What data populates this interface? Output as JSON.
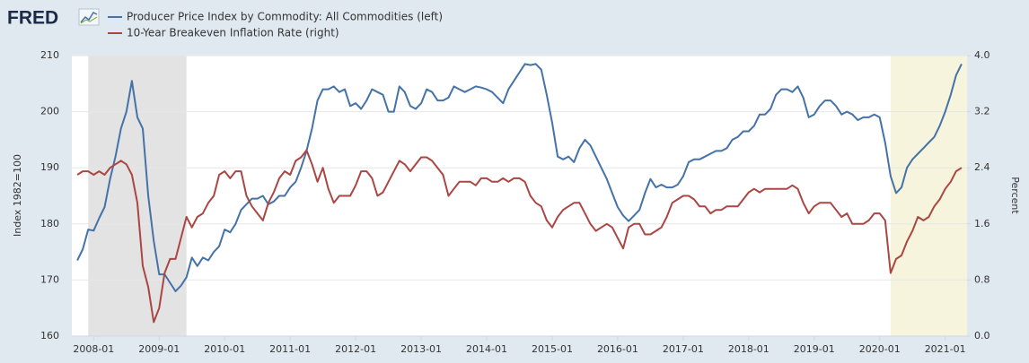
{
  "chart_data": {
    "type": "line",
    "logo": "FRED",
    "y_label": "Index 1982=100",
    "y2_label": "Percent",
    "xlim": [
      "2007-09",
      "2021-05"
    ],
    "xticks": [
      "2008-01",
      "2009-01",
      "2010-01",
      "2011-01",
      "2012-01",
      "2013-01",
      "2014-01",
      "2015-01",
      "2016-01",
      "2017-01",
      "2018-01",
      "2019-01",
      "2020-01",
      "2021-01"
    ],
    "ylim": [
      160,
      210
    ],
    "yticks": [
      160,
      170,
      180,
      190,
      200,
      210
    ],
    "y2lim": [
      0,
      4
    ],
    "y2ticks": [
      {
        "value": 0,
        "label": "0.0"
      },
      0.8,
      1.6,
      2.4,
      3.2,
      {
        "value": 4,
        "label": "4.0"
      }
    ],
    "grid": true,
    "shading": [
      {
        "start": "2007-12",
        "end": "2009-06",
        "color": "#e3e3e3"
      },
      {
        "start": "2020-03",
        "end": "2021-05",
        "color": "#f6f4dc"
      }
    ],
    "x": [
      "2007-10",
      "2007-11",
      "2007-12",
      "2008-01",
      "2008-02",
      "2008-03",
      "2008-04",
      "2008-05",
      "2008-06",
      "2008-07",
      "2008-08",
      "2008-09",
      "2008-10",
      "2008-11",
      "2008-12",
      "2009-01",
      "2009-02",
      "2009-03",
      "2009-04",
      "2009-05",
      "2009-06",
      "2009-07",
      "2009-08",
      "2009-09",
      "2009-10",
      "2009-11",
      "2009-12",
      "2010-01",
      "2010-02",
      "2010-03",
      "2010-04",
      "2010-05",
      "2010-06",
      "2010-07",
      "2010-08",
      "2010-09",
      "2010-10",
      "2010-11",
      "2010-12",
      "2011-01",
      "2011-02",
      "2011-03",
      "2011-04",
      "2011-05",
      "2011-06",
      "2011-07",
      "2011-08",
      "2011-09",
      "2011-10",
      "2011-11",
      "2011-12",
      "2012-01",
      "2012-02",
      "2012-03",
      "2012-04",
      "2012-05",
      "2012-06",
      "2012-07",
      "2012-08",
      "2012-09",
      "2012-10",
      "2012-11",
      "2012-12",
      "2013-01",
      "2013-02",
      "2013-03",
      "2013-04",
      "2013-05",
      "2013-06",
      "2013-07",
      "2013-08",
      "2013-09",
      "2013-10",
      "2013-11",
      "2013-12",
      "2014-01",
      "2014-02",
      "2014-03",
      "2014-04",
      "2014-05",
      "2014-06",
      "2014-07",
      "2014-08",
      "2014-09",
      "2014-10",
      "2014-11",
      "2014-12",
      "2015-01",
      "2015-02",
      "2015-03",
      "2015-04",
      "2015-05",
      "2015-06",
      "2015-07",
      "2015-08",
      "2015-09",
      "2015-10",
      "2015-11",
      "2015-12",
      "2016-01",
      "2016-02",
      "2016-03",
      "2016-04",
      "2016-05",
      "2016-06",
      "2016-07",
      "2016-08",
      "2016-09",
      "2016-10",
      "2016-11",
      "2016-12",
      "2017-01",
      "2017-02",
      "2017-03",
      "2017-04",
      "2017-05",
      "2017-06",
      "2017-07",
      "2017-08",
      "2017-09",
      "2017-10",
      "2017-11",
      "2017-12",
      "2018-01",
      "2018-02",
      "2018-03",
      "2018-04",
      "2018-05",
      "2018-06",
      "2018-07",
      "2018-08",
      "2018-09",
      "2018-10",
      "2018-11",
      "2018-12",
      "2019-01",
      "2019-02",
      "2019-03",
      "2019-04",
      "2019-05",
      "2019-06",
      "2019-07",
      "2019-08",
      "2019-09",
      "2019-10",
      "2019-11",
      "2019-12",
      "2020-01",
      "2020-02",
      "2020-03",
      "2020-04",
      "2020-05",
      "2020-06",
      "2020-07",
      "2020-08",
      "2020-09",
      "2020-10",
      "2020-11",
      "2020-12",
      "2021-01",
      "2021-02",
      "2021-03",
      "2021-04"
    ],
    "series": [
      {
        "name": "Producer Price Index by Commodity: All Commodities (left)",
        "color": "#4572a7",
        "axis": "y",
        "values": [
          173.5,
          175.5,
          179,
          178.8,
          181,
          183,
          188,
          192,
          197,
          200,
          205.5,
          199,
          197,
          185,
          177,
          171,
          171,
          169.5,
          168,
          169,
          170.5,
          174,
          172.5,
          174,
          173.5,
          175,
          176,
          179,
          178.5,
          180,
          182.5,
          183.5,
          184.5,
          184.5,
          185,
          183.5,
          184,
          185,
          185,
          186.5,
          187.5,
          190,
          193,
          197,
          202,
          204,
          204,
          204.5,
          203.5,
          204,
          201,
          201.5,
          200.5,
          202,
          204,
          203.5,
          203,
          200,
          200,
          204.5,
          203.5,
          201,
          200.5,
          201.5,
          204,
          203.5,
          202,
          202,
          202.5,
          204.5,
          204,
          203.5,
          204,
          204.5,
          204.3,
          204,
          203.5,
          202.5,
          201.5,
          204,
          205.5,
          207,
          208.5,
          208.3,
          208.5,
          207.5,
          203,
          198,
          192,
          191.5,
          192,
          191,
          193.5,
          195,
          194,
          192,
          190,
          188,
          185.5,
          183,
          181.5,
          180.5,
          181.5,
          182.5,
          185.5,
          188,
          186.5,
          187,
          186.5,
          186.5,
          187,
          188.5,
          191,
          191.5,
          191.5,
          192,
          192.5,
          193,
          193,
          193.5,
          195,
          195.5,
          196.5,
          196.5,
          197.5,
          199.5,
          199.5,
          200.5,
          203,
          204,
          204,
          203.5,
          204.5,
          202.5,
          199,
          199.5,
          201,
          202,
          202,
          201,
          199.5,
          200,
          199.5,
          198.5,
          199,
          199,
          199.5,
          199,
          194.5,
          188.5,
          185.5,
          186.5,
          190,
          191.5,
          192.5,
          193.5,
          194.5,
          195.5,
          197.5,
          200,
          203,
          206.5,
          208.5
        ]
      },
      {
        "name": "10-Year Breakeven Inflation Rate (right)",
        "color": "#aa4643",
        "axis": "y2",
        "values": [
          2.3,
          2.35,
          2.35,
          2.3,
          2.35,
          2.3,
          2.4,
          2.45,
          2.5,
          2.45,
          2.3,
          1.9,
          1.0,
          0.7,
          0.2,
          0.4,
          0.9,
          1.1,
          1.1,
          1.4,
          1.7,
          1.55,
          1.7,
          1.75,
          1.9,
          2.0,
          2.3,
          2.35,
          2.25,
          2.35,
          2.35,
          2.0,
          1.85,
          1.75,
          1.65,
          1.9,
          2.05,
          2.25,
          2.35,
          2.3,
          2.5,
          2.55,
          2.65,
          2.45,
          2.2,
          2.4,
          2.1,
          1.9,
          2.0,
          2.0,
          2.0,
          2.15,
          2.35,
          2.35,
          2.25,
          2.0,
          2.05,
          2.2,
          2.35,
          2.5,
          2.45,
          2.35,
          2.45,
          2.55,
          2.55,
          2.5,
          2.4,
          2.3,
          2.0,
          2.1,
          2.2,
          2.2,
          2.2,
          2.15,
          2.25,
          2.25,
          2.2,
          2.2,
          2.25,
          2.2,
          2.25,
          2.25,
          2.2,
          2.0,
          1.9,
          1.85,
          1.65,
          1.55,
          1.7,
          1.8,
          1.85,
          1.9,
          1.9,
          1.75,
          1.6,
          1.5,
          1.55,
          1.6,
          1.55,
          1.4,
          1.25,
          1.55,
          1.6,
          1.6,
          1.45,
          1.45,
          1.5,
          1.55,
          1.7,
          1.9,
          1.95,
          2.0,
          2.0,
          1.95,
          1.85,
          1.85,
          1.75,
          1.8,
          1.8,
          1.85,
          1.85,
          1.85,
          1.95,
          2.05,
          2.1,
          2.05,
          2.1,
          2.1,
          2.1,
          2.1,
          2.1,
          2.15,
          2.1,
          1.9,
          1.75,
          1.85,
          1.9,
          1.9,
          1.9,
          1.8,
          1.7,
          1.75,
          1.6,
          1.6,
          1.6,
          1.65,
          1.75,
          1.75,
          1.65,
          0.9,
          1.1,
          1.15,
          1.35,
          1.5,
          1.7,
          1.65,
          1.7,
          1.85,
          1.95,
          2.1,
          2.2,
          2.35,
          2.4
        ]
      }
    ]
  }
}
